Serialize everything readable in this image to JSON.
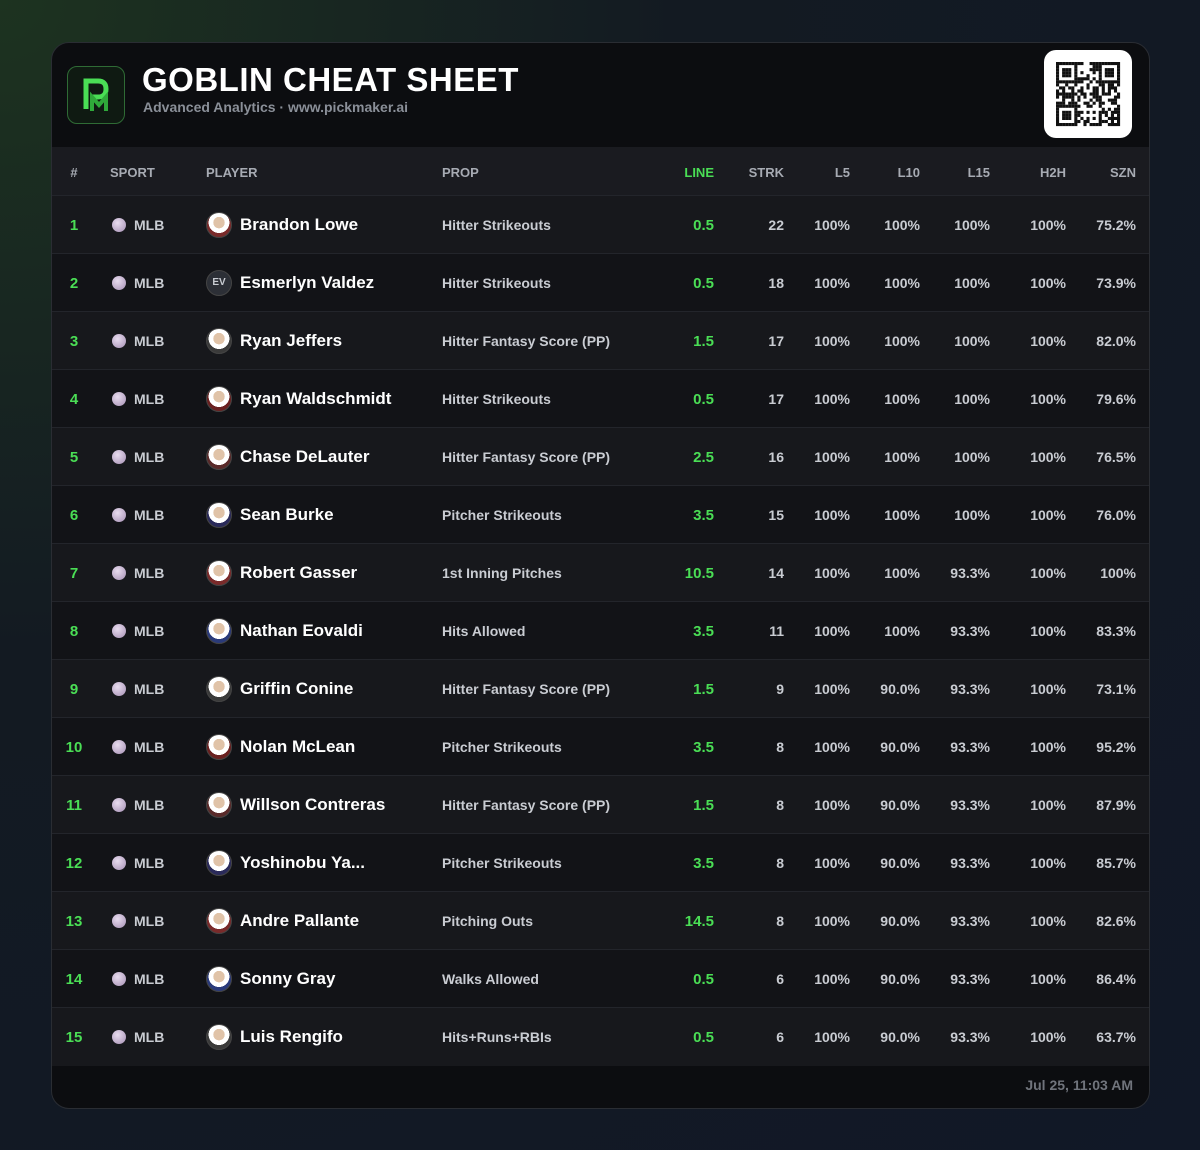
{
  "header": {
    "title": "GOBLIN CHEAT SHEET",
    "subtitle": "Advanced Analytics · www.pickmaker.ai"
  },
  "table": {
    "columns": [
      "#",
      "SPORT",
      "PLAYER",
      "PROP",
      "LINE",
      "STRK",
      "L5",
      "L10",
      "L15",
      "H2H",
      "SZN"
    ],
    "rows": [
      {
        "cells": [
          "1",
          "MLB",
          "Brandon Lowe",
          "Hitter Strikeouts",
          "0.5",
          "22",
          "100%",
          "100%",
          "100%",
          "100%",
          "75.2%"
        ]
      },
      {
        "cells": [
          "2",
          "MLB",
          "Esmerlyn Valdez",
          "Hitter Strikeouts",
          "0.5",
          "18",
          "100%",
          "100%",
          "100%",
          "100%",
          "73.9%"
        ],
        "initials": "EV"
      },
      {
        "cells": [
          "3",
          "MLB",
          "Ryan Jeffers",
          "Hitter Fantasy Score (PP)",
          "1.5",
          "17",
          "100%",
          "100%",
          "100%",
          "100%",
          "82.0%"
        ]
      },
      {
        "cells": [
          "4",
          "MLB",
          "Ryan Waldschmidt",
          "Hitter Strikeouts",
          "0.5",
          "17",
          "100%",
          "100%",
          "100%",
          "100%",
          "79.6%"
        ]
      },
      {
        "cells": [
          "5",
          "MLB",
          "Chase DeLauter",
          "Hitter Fantasy Score (PP)",
          "2.5",
          "16",
          "100%",
          "100%",
          "100%",
          "100%",
          "76.5%"
        ]
      },
      {
        "cells": [
          "6",
          "MLB",
          "Sean Burke",
          "Pitcher Strikeouts",
          "3.5",
          "15",
          "100%",
          "100%",
          "100%",
          "100%",
          "76.0%"
        ]
      },
      {
        "cells": [
          "7",
          "MLB",
          "Robert Gasser",
          "1st Inning Pitches",
          "10.5",
          "14",
          "100%",
          "100%",
          "93.3%",
          "100%",
          "100%"
        ]
      },
      {
        "cells": [
          "8",
          "MLB",
          "Nathan Eovaldi",
          "Hits Allowed",
          "3.5",
          "11",
          "100%",
          "100%",
          "93.3%",
          "100%",
          "83.3%"
        ]
      },
      {
        "cells": [
          "9",
          "MLB",
          "Griffin Conine",
          "Hitter Fantasy Score (PP)",
          "1.5",
          "9",
          "100%",
          "90.0%",
          "93.3%",
          "100%",
          "73.1%"
        ]
      },
      {
        "cells": [
          "10",
          "MLB",
          "Nolan McLean",
          "Pitcher Strikeouts",
          "3.5",
          "8",
          "100%",
          "90.0%",
          "93.3%",
          "100%",
          "95.2%"
        ]
      },
      {
        "cells": [
          "11",
          "MLB",
          "Willson Contreras",
          "Hitter Fantasy Score (PP)",
          "1.5",
          "8",
          "100%",
          "90.0%",
          "93.3%",
          "100%",
          "87.9%"
        ]
      },
      {
        "cells": [
          "12",
          "MLB",
          "Yoshinobu Ya...",
          "Pitcher Strikeouts",
          "3.5",
          "8",
          "100%",
          "90.0%",
          "93.3%",
          "100%",
          "85.7%"
        ]
      },
      {
        "cells": [
          "13",
          "MLB",
          "Andre Pallante",
          "Pitching Outs",
          "14.5",
          "8",
          "100%",
          "90.0%",
          "93.3%",
          "100%",
          "82.6%"
        ]
      },
      {
        "cells": [
          "14",
          "MLB",
          "Sonny Gray",
          "Walks Allowed",
          "0.5",
          "6",
          "100%",
          "90.0%",
          "93.3%",
          "100%",
          "86.4%"
        ]
      },
      {
        "cells": [
          "15",
          "MLB",
          "Luis Rengifo",
          "Hits+Runs+RBIs",
          "0.5",
          "6",
          "100%",
          "90.0%",
          "93.3%",
          "100%",
          "63.7%"
        ]
      }
    ]
  },
  "footer": {
    "timestamp": "Jul 25, 11:03 AM"
  }
}
